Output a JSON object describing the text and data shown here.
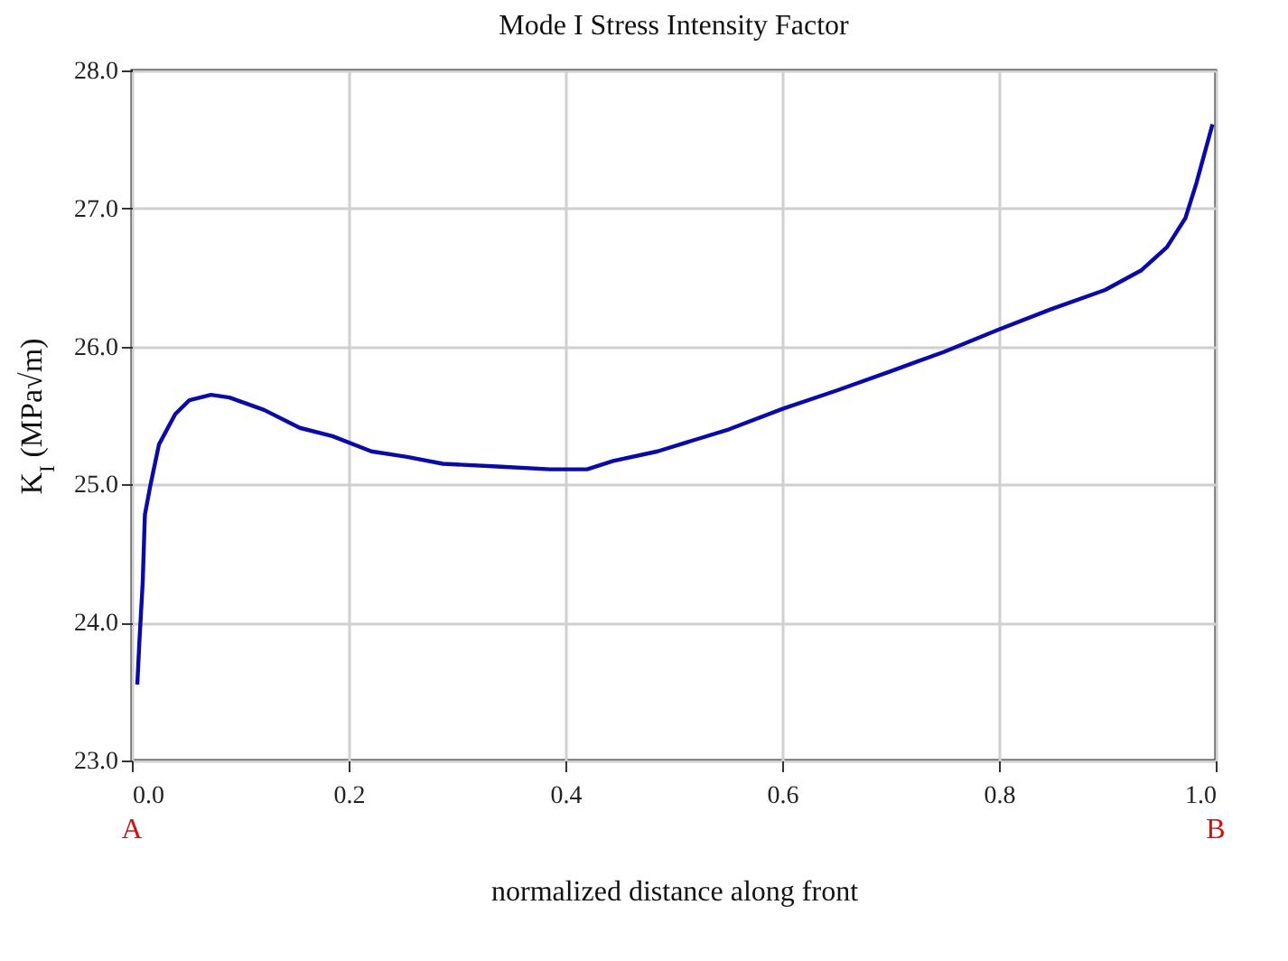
{
  "chart_data": {
    "type": "line",
    "title": "Mode I Stress Intensity Factor",
    "xlabel": "normalized distance along front",
    "ylabel": "K$_{I}$  (MPa√m)",
    "x": [
      0.005,
      0.007,
      0.01,
      0.012,
      0.017,
      0.025,
      0.04,
      0.053,
      0.073,
      0.09,
      0.122,
      0.155,
      0.185,
      0.221,
      0.254,
      0.287,
      0.337,
      0.386,
      0.42,
      0.444,
      0.485,
      0.518,
      0.551,
      0.601,
      0.65,
      0.7,
      0.749,
      0.799,
      0.848,
      0.898,
      0.931,
      0.955,
      0.972,
      0.982,
      0.997
    ],
    "series": [
      {
        "color": "#0a0aa8",
        "values": [
          23.55,
          23.87,
          24.29,
          24.78,
          24.99,
          25.29,
          25.51,
          25.61,
          25.65,
          25.63,
          25.54,
          25.41,
          25.35,
          25.24,
          25.2,
          25.15,
          25.13,
          25.11,
          25.11,
          25.17,
          25.24,
          25.32,
          25.4,
          25.55,
          25.68,
          25.82,
          25.96,
          26.12,
          26.27,
          26.41,
          26.55,
          26.72,
          26.93,
          27.18,
          27.61
        ]
      }
    ],
    "xlim": [
      0,
      1
    ],
    "xticks": [
      {
        "value": 0,
        "label": "0.0"
      },
      0.2,
      0.4,
      0.6,
      0.8,
      {
        "value": 1,
        "label": "1.0"
      }
    ],
    "ylim": [
      23,
      28
    ],
    "yticks": [
      {
        "value": 23,
        "label": "23.0"
      },
      {
        "value": 24,
        "label": "24.0"
      },
      {
        "value": 25,
        "label": "25.0"
      },
      {
        "value": 26,
        "label": "26.0"
      },
      {
        "value": 27,
        "label": "27.0"
      },
      {
        "value": 28,
        "label": "28.0"
      }
    ],
    "grid": true,
    "marker": "none",
    "line_style": "solid",
    "annotations": [
      "A",
      "B"
    ]
  }
}
